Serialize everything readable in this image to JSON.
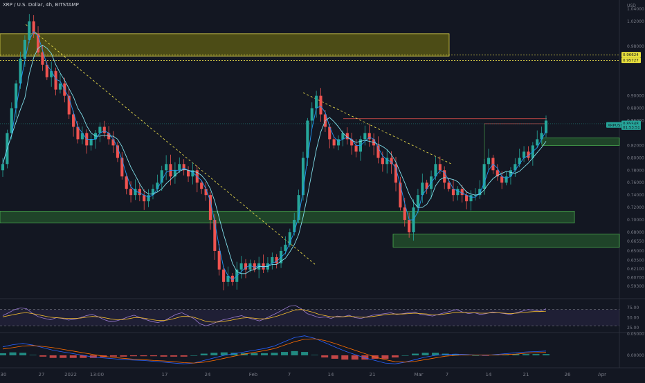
{
  "header": {
    "title": "XRP / U.S. Dollar, 4h, BITSTAMP",
    "currency": "USD"
  },
  "colors": {
    "background": "#131722",
    "bull": "#26a69a",
    "bear": "#ef5350",
    "ma_fast": "#2196f3",
    "ma_slow": "#80deea",
    "yellow_zone": "#b8b000",
    "green_zone": "#2e7d32",
    "trendline": "#e5d84a",
    "resistance": "#ef5350",
    "rsi_line": "#9c7cd4",
    "rsi_ma": "#f9c02e",
    "macd_line": "#2962ff",
    "signal_line": "#ff6d00"
  },
  "chart_data": [
    {
      "type": "candlestick",
      "title": "XRP / U.S. Dollar, 4h, BITSTAMP",
      "ylabel": "USD",
      "ylim": [
        0.5775,
        1.0455
      ],
      "yticks": [
        "1.04000",
        "1.02000",
        "0.98000",
        "0.90000",
        "0.88000",
        "0.86000",
        "0.82000",
        "0.80000",
        "0.78000",
        "0.76000",
        "0.74000",
        "0.72000",
        "0.70000",
        "0.68000",
        "0.66550",
        "0.65000",
        "0.63500",
        "0.62100",
        "0.60700",
        "0.59300"
      ],
      "x_tick_labels": [
        "30",
        "27",
        "2022",
        "13:00",
        "17",
        "24",
        "Feb",
        "7",
        "14",
        "21",
        "Mar",
        "7",
        "14",
        "21",
        "26",
        "Apr"
      ],
      "price_tags": [
        {
          "label": "0.96624",
          "value": 0.9662,
          "color": "#e8e03c"
        },
        {
          "label": "0.95727",
          "value": 0.9573,
          "color": "#e8e03c"
        },
        {
          "label": "XRPUSD",
          "value": 0.853,
          "color": "#26a69a"
        },
        {
          "label": "0.85548",
          "value": 0.8555,
          "color": "#26a69a"
        },
        {
          "label": "01:53:51",
          "value": 0.8495,
          "color": "#26a69a"
        }
      ],
      "last_price": 0.855,
      "zones": [
        {
          "name": "supply",
          "from": 0.964,
          "to": 1.0,
          "color": "#b8b000"
        },
        {
          "name": "demand",
          "from": 0.695,
          "to": 0.714,
          "color": "#2e7d32"
        },
        {
          "name": "demand",
          "from": 0.656,
          "to": 0.677,
          "color": "#2e7d32"
        },
        {
          "name": "demand",
          "from": 0.82,
          "to": 0.832,
          "color": "#2e7d32"
        }
      ],
      "horizontal_levels": [
        0.966,
        0.957
      ],
      "resistance_level": 0.863,
      "trendlines": [
        {
          "from": {
            "x": 0.04,
            "y": 1.015
          },
          "to": {
            "x": 0.49,
            "y": 0.627
          }
        },
        {
          "from": {
            "x": 0.47,
            "y": 0.905
          },
          "to": {
            "x": 0.7,
            "y": 0.79
          }
        }
      ],
      "series": [
        {
          "name": "XRPUSD",
          "closes": [
            0.79,
            0.84,
            0.88,
            0.92,
            0.96,
            0.99,
            1.02,
            1.0,
            0.97,
            0.95,
            0.93,
            0.94,
            0.91,
            0.92,
            0.9,
            0.87,
            0.85,
            0.83,
            0.84,
            0.82,
            0.83,
            0.84,
            0.85,
            0.84,
            0.83,
            0.82,
            0.8,
            0.77,
            0.75,
            0.74,
            0.75,
            0.74,
            0.73,
            0.74,
            0.75,
            0.76,
            0.78,
            0.79,
            0.77,
            0.78,
            0.79,
            0.78,
            0.77,
            0.78,
            0.76,
            0.75,
            0.74,
            0.7,
            0.65,
            0.62,
            0.6,
            0.61,
            0.6,
            0.62,
            0.63,
            0.62,
            0.63,
            0.62,
            0.63,
            0.62,
            0.63,
            0.64,
            0.63,
            0.65,
            0.66,
            0.68,
            0.7,
            0.74,
            0.8,
            0.86,
            0.88,
            0.9,
            0.87,
            0.85,
            0.83,
            0.82,
            0.83,
            0.84,
            0.83,
            0.82,
            0.81,
            0.83,
            0.84,
            0.83,
            0.82,
            0.8,
            0.79,
            0.8,
            0.79,
            0.76,
            0.72,
            0.7,
            0.68,
            0.72,
            0.74,
            0.76,
            0.75,
            0.77,
            0.79,
            0.78,
            0.76,
            0.75,
            0.74,
            0.75,
            0.74,
            0.73,
            0.74,
            0.74,
            0.75,
            0.79,
            0.8,
            0.78,
            0.77,
            0.76,
            0.77,
            0.78,
            0.79,
            0.8,
            0.81,
            0.8,
            0.82,
            0.83,
            0.84,
            0.86
          ]
        }
      ]
    },
    {
      "type": "line",
      "title": "RSI",
      "ylim": [
        15,
        90
      ],
      "yticks": [
        "75.00",
        "50.00",
        "25.00"
      ],
      "band": [
        30,
        70
      ],
      "series": [
        {
          "name": "RSI",
          "values": [
            55,
            62,
            70,
            74,
            72,
            60,
            52,
            48,
            45,
            50,
            48,
            44,
            46,
            50,
            55,
            58,
            52,
            45,
            40,
            42,
            46,
            52,
            56,
            50,
            45,
            40,
            38,
            42,
            50,
            58,
            62,
            55,
            48,
            35,
            30,
            34,
            40,
            45,
            48,
            52,
            55,
            50,
            46,
            42,
            48,
            55,
            62,
            70,
            78,
            80,
            72,
            60,
            55,
            50,
            52,
            48,
            54,
            52,
            56,
            50,
            48,
            52,
            56,
            58,
            60,
            62,
            58,
            60,
            62,
            64,
            58,
            56,
            54,
            58,
            62,
            66,
            70,
            64,
            60,
            62,
            58,
            60,
            64,
            62,
            60,
            58,
            62,
            66,
            70,
            68,
            66,
            72
          ]
        },
        {
          "name": "RSI-MA",
          "values": [
            52,
            55,
            58,
            61,
            62,
            60,
            57,
            54,
            51,
            50,
            49,
            48,
            48,
            49,
            51,
            53,
            52,
            50,
            47,
            45,
            45,
            47,
            50,
            50,
            48,
            45,
            43,
            43,
            45,
            49,
            53,
            53,
            51,
            46,
            41,
            39,
            39,
            41,
            43,
            46,
            49,
            50,
            49,
            47,
            47,
            50,
            54,
            59,
            64,
            69,
            70,
            67,
            63,
            58,
            55,
            52,
            52,
            52,
            54,
            52,
            51,
            51,
            53,
            55,
            57,
            59,
            59,
            59,
            60,
            61,
            60,
            59,
            57,
            57,
            59,
            61,
            63,
            63,
            62,
            62,
            61,
            61,
            62,
            62,
            61,
            60,
            61,
            62,
            64,
            65,
            65,
            66
          ]
        }
      ]
    },
    {
      "type": "bar",
      "title": "MACD",
      "ylim": [
        -0.026,
        0.052
      ],
      "yticks": [
        "0.05000",
        "0.00000"
      ],
      "series": [
        {
          "name": "MACD",
          "values": [
            0.02,
            0.025,
            0.028,
            0.024,
            0.018,
            0.012,
            0.008,
            0.004,
            0.0,
            -0.004,
            -0.006,
            -0.008,
            -0.01,
            -0.011,
            -0.012,
            -0.014,
            -0.016,
            -0.018,
            -0.02,
            -0.018,
            -0.012,
            -0.006,
            0.0,
            0.004,
            0.008,
            0.012,
            0.016,
            0.022,
            0.032,
            0.042,
            0.046,
            0.04,
            0.03,
            0.02,
            0.01,
            0.002,
            -0.006,
            -0.012,
            -0.018,
            -0.02,
            -0.016,
            -0.01,
            -0.004,
            0.0,
            0.002,
            0.003,
            0.002,
            0.001,
            0.0,
            0.002,
            0.004,
            0.006,
            0.008,
            0.009,
            0.01
          ]
        },
        {
          "name": "Signal",
          "values": [
            0.015,
            0.018,
            0.022,
            0.023,
            0.021,
            0.018,
            0.014,
            0.01,
            0.006,
            0.002,
            -0.002,
            -0.005,
            -0.007,
            -0.009,
            -0.01,
            -0.012,
            -0.013,
            -0.015,
            -0.017,
            -0.018,
            -0.016,
            -0.012,
            -0.007,
            -0.002,
            0.003,
            0.007,
            0.011,
            0.016,
            0.024,
            0.032,
            0.038,
            0.039,
            0.035,
            0.028,
            0.02,
            0.012,
            0.004,
            -0.004,
            -0.01,
            -0.015,
            -0.016,
            -0.014,
            -0.01,
            -0.006,
            -0.002,
            0.0,
            0.001,
            0.001,
            0.001,
            0.001,
            0.002,
            0.003,
            0.005,
            0.006,
            0.007
          ]
        }
      ]
    }
  ]
}
